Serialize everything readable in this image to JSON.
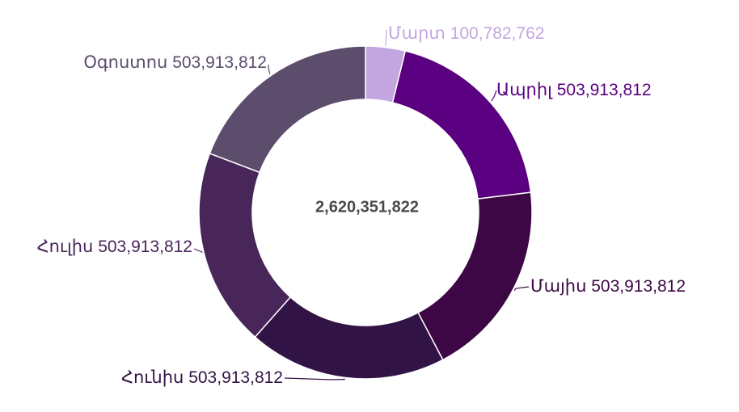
{
  "chart_data": {
    "type": "pie",
    "variant": "donut",
    "center_label": "2,620,351,822",
    "slices": [
      {
        "label": "Մարտ",
        "value": 100782762,
        "value_text": "100,782,762",
        "color": "#c3a6e0"
      },
      {
        "label": "Ապրիլ",
        "value": 503913812,
        "value_text": "503,913,812",
        "color": "#5a0080"
      },
      {
        "label": "Մայիս",
        "value": 503913812,
        "value_text": "503,913,812",
        "color": "#3d0745"
      },
      {
        "label": "Հունիս",
        "value": 503913812,
        "value_text": "503,913,812",
        "color": "#321345"
      },
      {
        "label": "Հուլիս",
        "value": 503913812,
        "value_text": "503,913,812",
        "color": "#48265a"
      },
      {
        "label": "Օգոստոս",
        "value": 503913812,
        "value_text": "503,913,812",
        "color": "#5c4d6d"
      }
    ],
    "legend": "none",
    "labels_outside": true
  }
}
